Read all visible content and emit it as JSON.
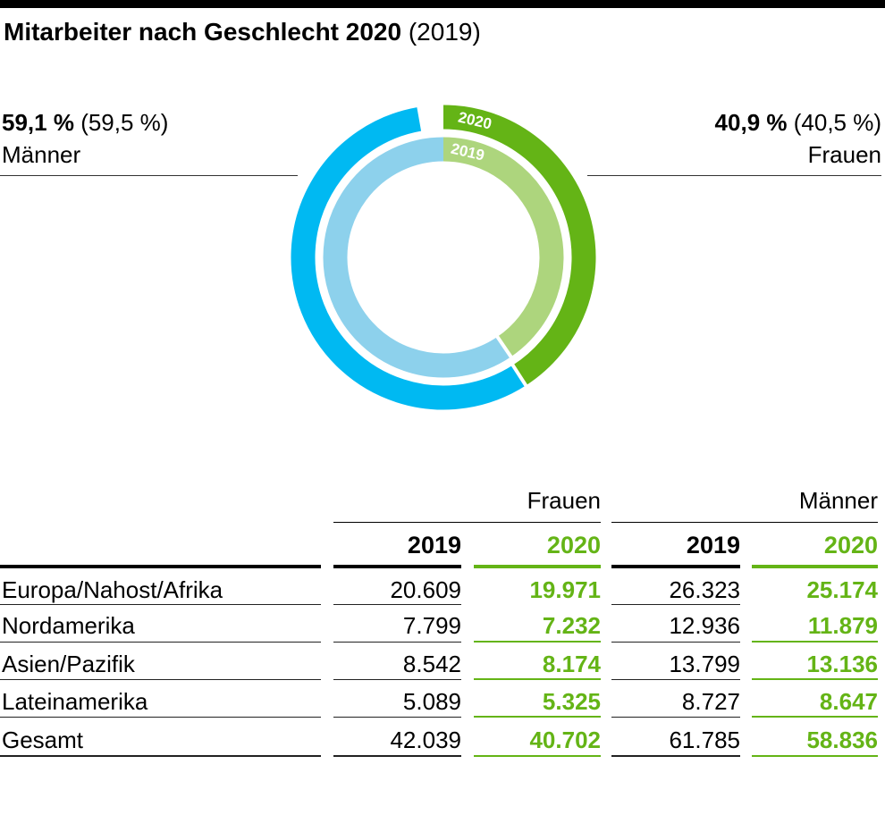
{
  "title": {
    "bold": "Mitarbeiter nach Geschlecht 2020",
    "light": "(2019)"
  },
  "colors": {
    "men_2020": "#00b9f2",
    "men_2019": "#8dd1ec",
    "women_2020": "#64b416",
    "women_2019": "#add57d",
    "accent_green": "#64b416"
  },
  "chart_data": {
    "type": "pie",
    "title": "Mitarbeiter nach Geschlecht 2020 (2019)",
    "rings": [
      {
        "name": "2020",
        "slices": [
          {
            "label": "Frauen",
            "value": 40.9
          },
          {
            "label": "Männer",
            "value": 59.1
          }
        ]
      },
      {
        "name": "2019",
        "slices": [
          {
            "label": "Frauen",
            "value": 40.5
          },
          {
            "label": "Männer",
            "value": 59.5
          }
        ]
      }
    ],
    "ring_labels": [
      "2020",
      "2019"
    ]
  },
  "callouts": {
    "men": {
      "value": "59,1 %",
      "prev": "(59,5 %)",
      "label": "Männer"
    },
    "women": {
      "value": "40,9 %",
      "prev": "(40,5 %)",
      "label": "Frauen"
    }
  },
  "table": {
    "groups": [
      "Frauen",
      "Männer"
    ],
    "years": [
      "2019",
      "2020",
      "2019",
      "2020"
    ],
    "rows": [
      {
        "label": "Europa/Nahost/Afrika",
        "values": [
          "20.609",
          "19.971",
          "26.323",
          "25.174"
        ]
      },
      {
        "label": "Nordamerika",
        "values": [
          "7.799",
          "7.232",
          "12.936",
          "11.879"
        ]
      },
      {
        "label": "Asien/Pazifik",
        "values": [
          "8.542",
          "8.174",
          "13.799",
          "13.136"
        ]
      },
      {
        "label": "Lateinamerika",
        "values": [
          "5.089",
          "5.325",
          "8.727",
          "8.647"
        ]
      },
      {
        "label": "Gesamt",
        "values": [
          "42.039",
          "40.702",
          "61.785",
          "58.836"
        ]
      }
    ]
  }
}
